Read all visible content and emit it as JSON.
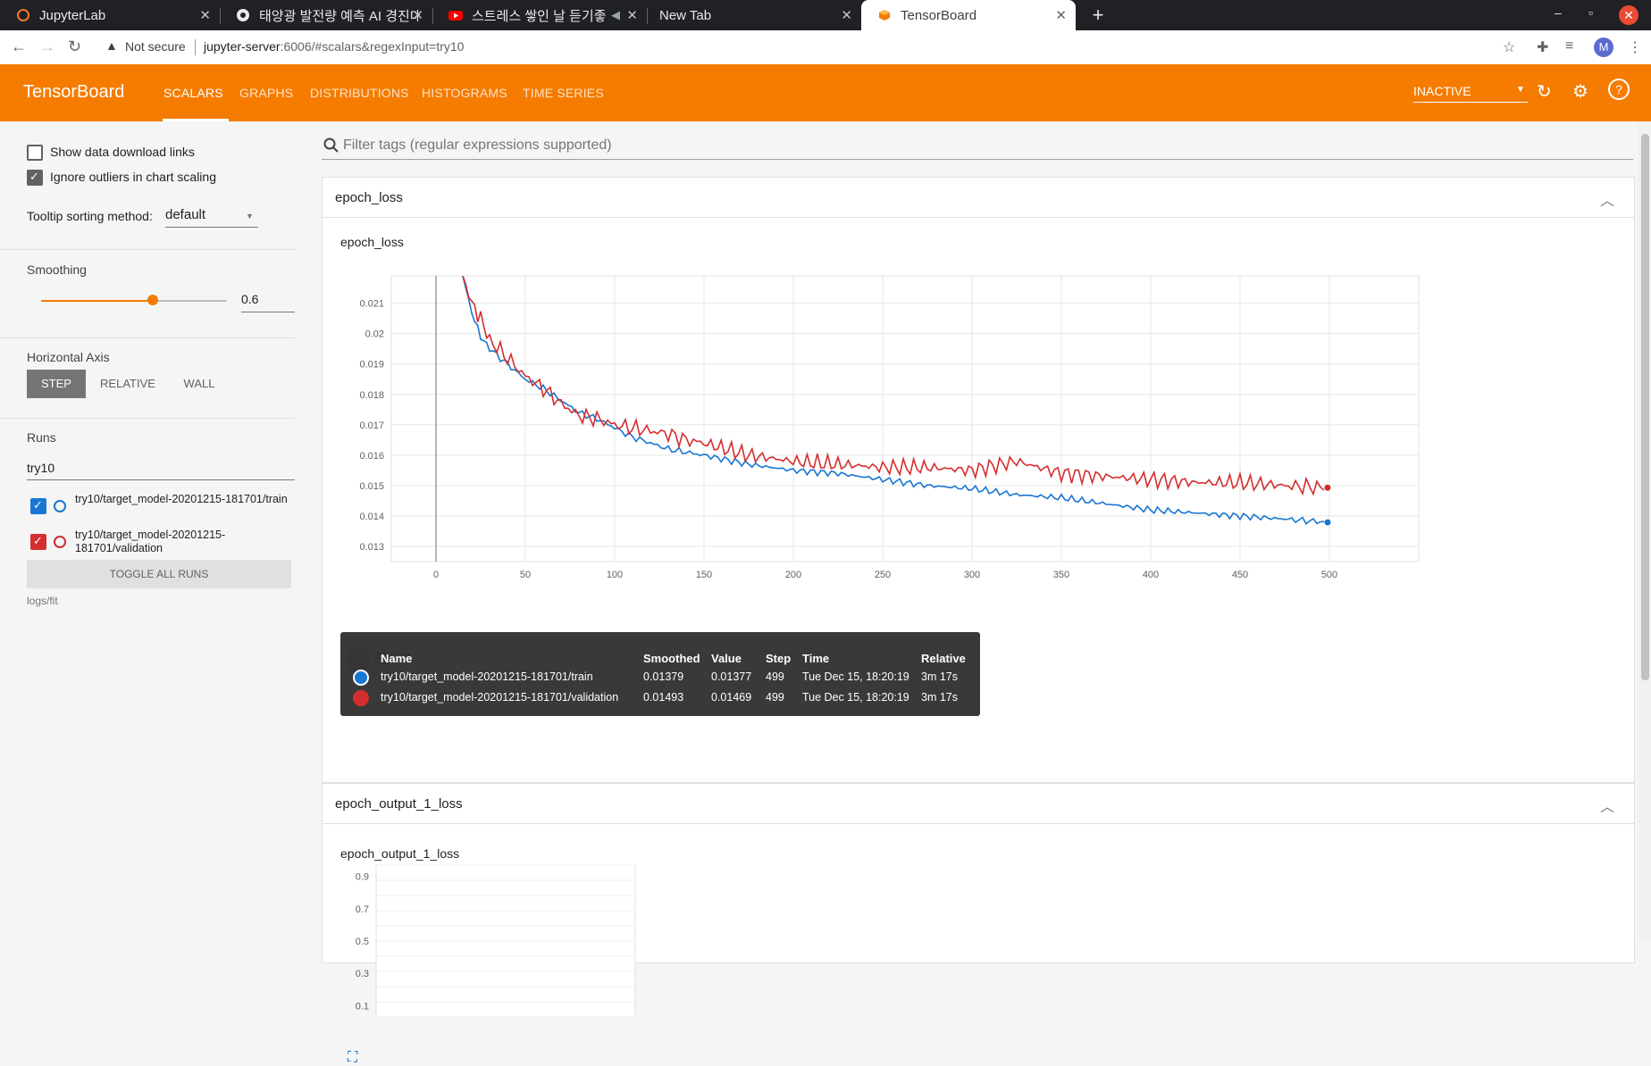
{
  "browser": {
    "tabs": [
      {
        "title": "JupyterLab",
        "active": false
      },
      {
        "title": "태양광 발전량 예측 AI 경진대",
        "active": false
      },
      {
        "title": "스트레스 쌓인 날 듣기좋",
        "active": false
      },
      {
        "title": "New Tab",
        "active": false
      },
      {
        "title": "TensorBoard",
        "active": true
      }
    ],
    "security_label": "Not secure",
    "url_host": "jupyter-server",
    "url_rest": ":6006/#scalars&regexInput=try10"
  },
  "header": {
    "logo": "TensorBoard",
    "nav": [
      "SCALARS",
      "GRAPHS",
      "DISTRIBUTIONS",
      "HISTOGRAMS",
      "TIME SERIES"
    ],
    "status": "INACTIVE",
    "accent": "#f57c00"
  },
  "sidebar": {
    "show_download_links": "Show data download links",
    "ignore_outliers": "Ignore outliers in chart scaling",
    "tooltip_sort_label": "Tooltip sorting method:",
    "tooltip_sort_value": "default",
    "smoothing_label": "Smoothing",
    "smoothing_value": "0.6",
    "smoothing_fraction": 0.6,
    "horizontal_axis_label": "Horizontal Axis",
    "axis_options": [
      "STEP",
      "RELATIVE",
      "WALL"
    ],
    "runs_label": "Runs",
    "runs_filter": "try10",
    "runs": [
      {
        "name": "try10/target_model-20201215-181701/train",
        "color": "#1976d2"
      },
      {
        "name": "try10/target_model-20201215-181701/validation",
        "color": "#d32f2f"
      }
    ],
    "toggle_all": "TOGGLE ALL RUNS",
    "logdir": "logs/fit"
  },
  "main": {
    "filter_placeholder": "Filter tags (regular expressions supported)",
    "card1_title": "epoch_loss",
    "chart1_title": "epoch_loss",
    "card2_title": "epoch_output_1_loss",
    "chart2_title": "epoch_output_1_loss"
  },
  "tooltip": {
    "headers": [
      "Name",
      "Smoothed",
      "Value",
      "Step",
      "Time",
      "Relative"
    ],
    "rows": [
      {
        "name": "try10/target_model-20201215-181701/train",
        "smoothed": "0.01379",
        "value": "0.01377",
        "step": "499",
        "time": "Tue Dec 15, 18:20:19",
        "relative": "3m 17s",
        "color": "#1976d2"
      },
      {
        "name": "try10/target_model-20201215-181701/validation",
        "smoothed": "0.01493",
        "value": "0.01469",
        "step": "499",
        "time": "Tue Dec 15, 18:20:19",
        "relative": "3m 17s",
        "color": "#d32f2f"
      }
    ]
  },
  "chart_data": [
    {
      "type": "line",
      "title": "epoch_loss",
      "xlabel": "",
      "ylabel": "",
      "xlim": [
        -25,
        550
      ],
      "ylim": [
        0.0125,
        0.0219
      ],
      "xticks": [
        0,
        50,
        100,
        150,
        200,
        250,
        300,
        350,
        400,
        450,
        500
      ],
      "yticks": [
        0.013,
        0.014,
        0.015,
        0.016,
        0.017,
        0.018,
        0.019,
        0.02,
        0.021
      ],
      "grid": true,
      "series": [
        {
          "name": "try10/target_model-20201215-181701/train",
          "color": "#1976d2",
          "x": [
            15,
            20,
            25,
            30,
            40,
            50,
            60,
            70,
            80,
            90,
            100,
            110,
            120,
            130,
            140,
            150,
            175,
            200,
            225,
            250,
            275,
            300,
            325,
            350,
            375,
            400,
            425,
            450,
            475,
            499
          ],
          "y": [
            0.0219,
            0.0207,
            0.0199,
            0.0195,
            0.019,
            0.0185,
            0.0182,
            0.0178,
            0.0174,
            0.0172,
            0.0169,
            0.0166,
            0.0164,
            0.0162,
            0.0161,
            0.016,
            0.0157,
            0.0155,
            0.0154,
            0.0152,
            0.015,
            0.0149,
            0.0147,
            0.0146,
            0.0144,
            0.0142,
            0.0141,
            0.014,
            0.0139,
            0.01379
          ]
        },
        {
          "name": "try10/target_model-20201215-181701/validation",
          "color": "#d32f2f",
          "x": [
            15,
            20,
            25,
            30,
            40,
            50,
            60,
            70,
            80,
            90,
            100,
            110,
            120,
            130,
            140,
            150,
            175,
            200,
            225,
            250,
            275,
            300,
            325,
            350,
            375,
            400,
            425,
            450,
            475,
            499
          ],
          "y": [
            0.0219,
            0.021,
            0.0205,
            0.0198,
            0.0192,
            0.0186,
            0.0182,
            0.0177,
            0.0173,
            0.0172,
            0.017,
            0.0169,
            0.0168,
            0.0167,
            0.0165,
            0.0164,
            0.016,
            0.0158,
            0.0157,
            0.0156,
            0.0156,
            0.0155,
            0.0158,
            0.0154,
            0.0153,
            0.0152,
            0.0151,
            0.0151,
            0.015,
            0.01493
          ]
        }
      ]
    },
    {
      "type": "line",
      "title": "epoch_output_1_loss",
      "xlabel": "",
      "ylabel": "",
      "ylim": [
        0.03,
        0.97
      ],
      "yticks": [
        0.9,
        0.7,
        0.5,
        0.3,
        0.1
      ],
      "grid": true,
      "series": []
    }
  ]
}
